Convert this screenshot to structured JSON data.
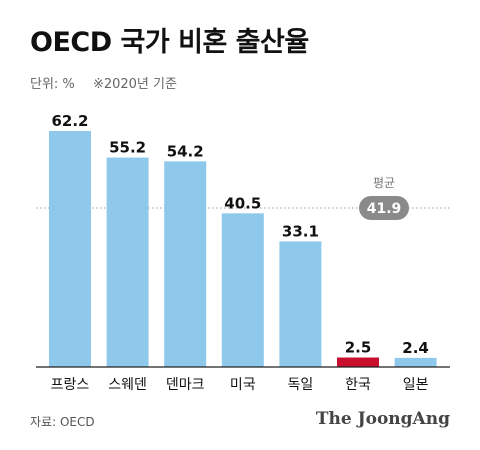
{
  "header": {
    "title": "OECD 국가 비혼 출산율",
    "unit": "단위: %",
    "note": "※2020년 기준"
  },
  "footer": {
    "source": "자료: OECD",
    "brand": "The JoongAng"
  },
  "colors": {
    "bar": "#8ec9ec",
    "highlight": "#c8102e",
    "axis": "#222222",
    "average_line": "#999999",
    "average_badge": "#8a8a8a",
    "average_label": "#777777"
  },
  "chart_data": {
    "type": "bar",
    "title": "OECD 국가 비혼 출산율",
    "categories": [
      "프랑스",
      "스웨덴",
      "덴마크",
      "미국",
      "독일",
      "한국",
      "일본"
    ],
    "values": [
      62.2,
      55.2,
      54.2,
      40.5,
      33.1,
      2.5,
      2.4
    ],
    "value_labels": [
      "62.2",
      "55.2",
      "54.2",
      "40.5",
      "33.1",
      "2.5",
      "2.4"
    ],
    "highlight_category": "한국",
    "ylim": [
      0,
      62.2
    ],
    "grid": false,
    "average": {
      "label": "평균",
      "value": 41.9,
      "value_label": "41.9"
    }
  }
}
